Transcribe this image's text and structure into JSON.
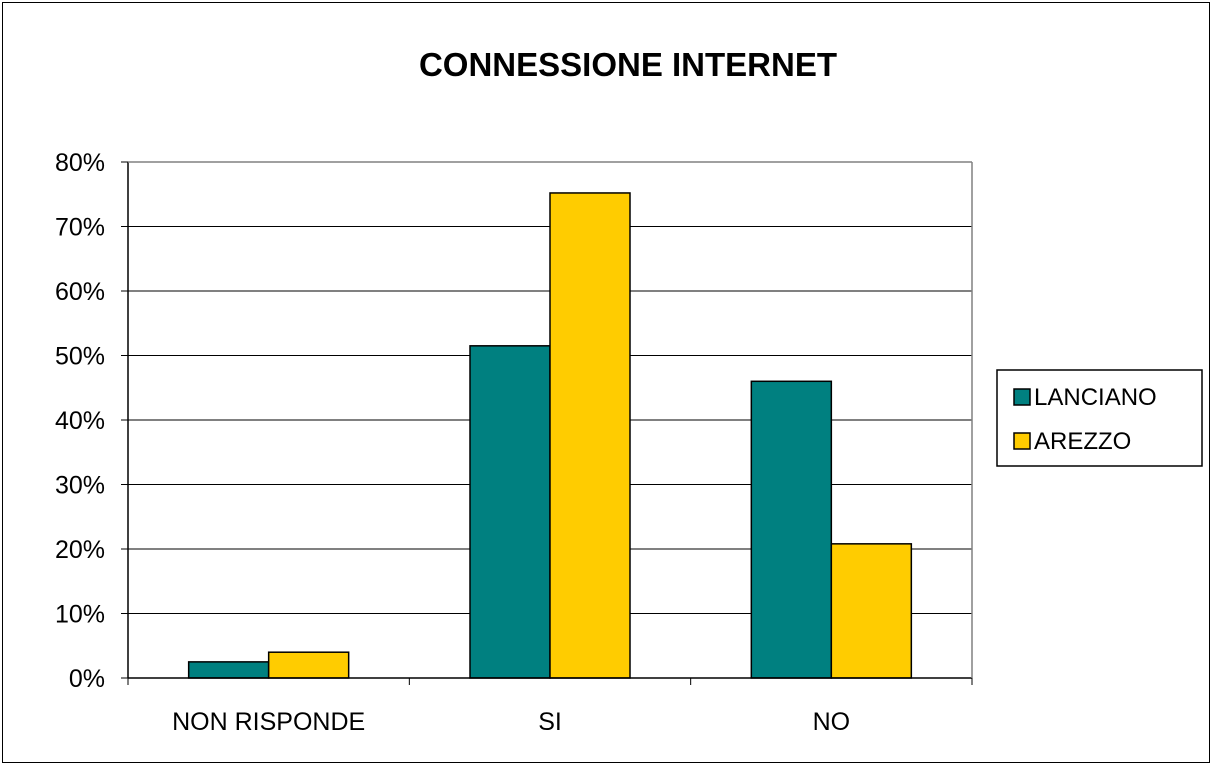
{
  "chart_data": {
    "type": "bar",
    "title": "CONNESSIONE INTERNET",
    "categories": [
      "NON RISPONDE",
      "SI",
      "NO"
    ],
    "series": [
      {
        "name": "LANCIANO",
        "values": [
          2.5,
          51.5,
          46.0
        ],
        "color": "#008080"
      },
      {
        "name": "AREZZO",
        "values": [
          4.0,
          75.2,
          20.8
        ],
        "color": "#FFCC00"
      }
    ],
    "yticks": [
      "0%",
      "10%",
      "20%",
      "30%",
      "40%",
      "50%",
      "60%",
      "70%",
      "80%"
    ],
    "ylim": [
      0,
      80
    ],
    "grid": true,
    "legend_position": "right",
    "plot_background": "#ffffff",
    "gridline_color": "#000000"
  }
}
